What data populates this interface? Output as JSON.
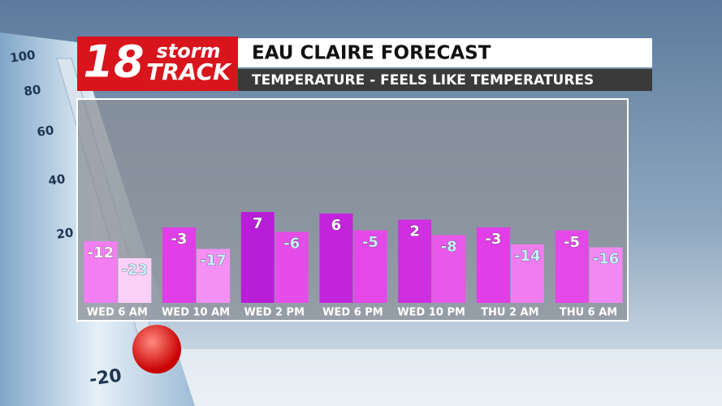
{
  "logo": {
    "number": "18",
    "word1": "storm",
    "word2": "TRACK"
  },
  "thermometer_labels": [
    "100",
    "80",
    "60",
    "40",
    "20",
    "-20"
  ],
  "chart_data": {
    "type": "bar",
    "title": "EAU CLAIRE FORECAST",
    "subtitle": "TEMPERATURE - FEELS LIKE TEMPERATURES",
    "categories": [
      "WED 6 AM",
      "WED 10 AM",
      "WED 2 PM",
      "WED 6 PM",
      "WED 10 PM",
      "THU 2 AM",
      "THU 6 AM"
    ],
    "series": [
      {
        "values": [
          -12,
          -3,
          7,
          6,
          2,
          -3,
          -5
        ],
        "colors": [
          "#f27ef2",
          "#e03ee6",
          "#b81ed8",
          "#c224dc",
          "#cf2fe0",
          "#e03ee6",
          "#e448e8"
        ],
        "label_color": "#ffffff"
      },
      {
        "values": [
          -23,
          -17,
          -6,
          -5,
          -8,
          -14,
          -16
        ],
        "colors": [
          "#fbd0f8",
          "#f490f4",
          "#e64ce8",
          "#e448e8",
          "#e858ea",
          "#f07cf0",
          "#f288f2"
        ],
        "label_color": "#c8f2ff"
      }
    ],
    "ylim": [
      -52,
      76
    ]
  }
}
